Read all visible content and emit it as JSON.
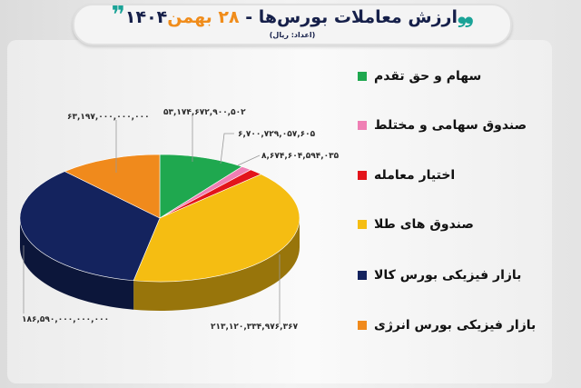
{
  "header": {
    "title_main": "ارزش معاملات بورس‌ها -",
    "title_date": "۲۸ بهمن",
    "title_year": "۱۴۰۴",
    "subtitle": "(اعداد: ریال)",
    "quote_color": "#1aa397"
  },
  "chart_data": {
    "type": "pie",
    "style": "3d",
    "unit": "ریال",
    "legend_position": "right",
    "categories": [
      "سهام و حق تقدم",
      "صندوق سهامی و مختلط",
      "اختیار معامله",
      "صندوق های طلا",
      "بازار فیزیکی بورس کالا",
      "بازار فیزیکی بورس انرژی"
    ],
    "values": [
      53174672900502,
      6700729057605,
      8674604594035,
      213120334976367,
      186590000000000,
      63197000000000
    ],
    "labels": [
      "۵۳,۱۷۴,۶۷۲,۹۰۰,۵۰۲",
      "۶,۷۰۰,۷۲۹,۰۵۷,۶۰۵",
      "۸,۶۷۴,۶۰۴,۵۹۴,۰۳۵",
      "۲۱۳,۱۲۰,۳۳۴,۹۷۶,۳۶۷",
      "۱۸۶,۵۹۰,۰۰۰,۰۰۰,۰۰۰",
      "۶۳,۱۹۷,۰۰۰,۰۰۰,۰۰۰"
    ],
    "colors": [
      "#1fa84f",
      "#ef7fb4",
      "#e3141b",
      "#f5bd12",
      "#14235e",
      "#f08a1c"
    ]
  }
}
